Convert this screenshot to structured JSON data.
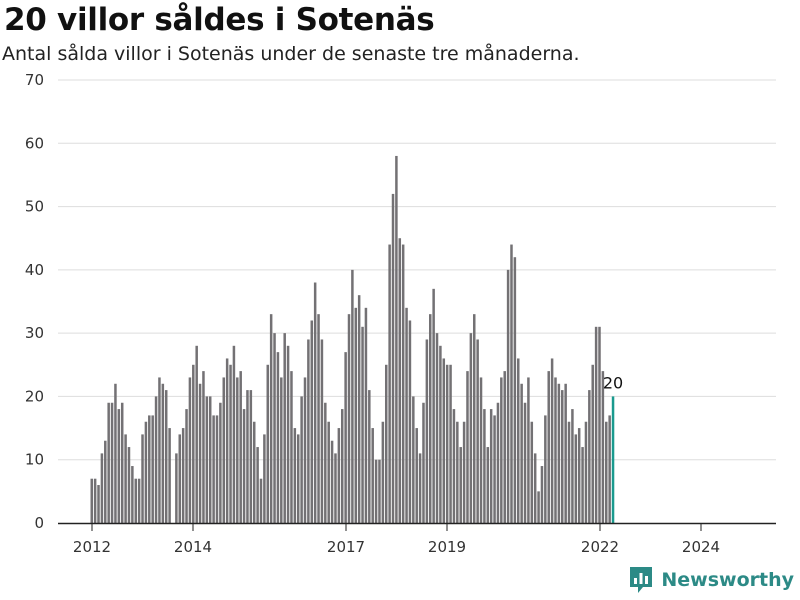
{
  "header": {
    "title": "20 villor såldes i Sotenäs",
    "subtitle": "Antal sålda villor i Sotenäs under de senaste tre månaderna."
  },
  "brand": {
    "name": "Newsworthy",
    "color": "#2c8a86",
    "icon": "newsworthy-logo-icon"
  },
  "colors": {
    "bar": "#737174",
    "highlight": "#1a9a8e",
    "grid": "#dddddd",
    "axis": "#222222"
  },
  "chart_data": {
    "type": "bar",
    "y_ticks": [
      0,
      10,
      20,
      30,
      40,
      50,
      60,
      70
    ],
    "x_ticks": [
      "2012",
      "2014",
      "2017",
      "2019",
      "2022",
      "2024"
    ],
    "ylim": [
      0,
      70
    ],
    "grid": true,
    "values": [
      7,
      7,
      6,
      11,
      13,
      19,
      19,
      22,
      18,
      19,
      14,
      12,
      9,
      7,
      7,
      14,
      16,
      17,
      17,
      20,
      23,
      22,
      21,
      15,
      0,
      11,
      14,
      15,
      18,
      23,
      25,
      28,
      22,
      24,
      20,
      20,
      17,
      17,
      19,
      23,
      26,
      25,
      28,
      23,
      24,
      18,
      21,
      21,
      16,
      12,
      7,
      14,
      25,
      33,
      30,
      27,
      23,
      30,
      28,
      24,
      15,
      14,
      20,
      23,
      29,
      32,
      38,
      33,
      29,
      19,
      16,
      13,
      11,
      15,
      18,
      27,
      33,
      40,
      34,
      36,
      31,
      34,
      21,
      15,
      10,
      10,
      16,
      25,
      44,
      52,
      58,
      45,
      44,
      34,
      32,
      20,
      15,
      11,
      19,
      29,
      33,
      37,
      30,
      28,
      26,
      25,
      25,
      18,
      16,
      12,
      16,
      24,
      30,
      33,
      29,
      23,
      18,
      12,
      18,
      17,
      19,
      23,
      24,
      40,
      44,
      42,
      26,
      22,
      19,
      23,
      16,
      11,
      5,
      9,
      17,
      24,
      26,
      23,
      22,
      21,
      22,
      16,
      18,
      14,
      15,
      12,
      16,
      21,
      25,
      31,
      31,
      24,
      16,
      17,
      20
    ],
    "highlight_index": 154,
    "highlight_label": "20"
  }
}
